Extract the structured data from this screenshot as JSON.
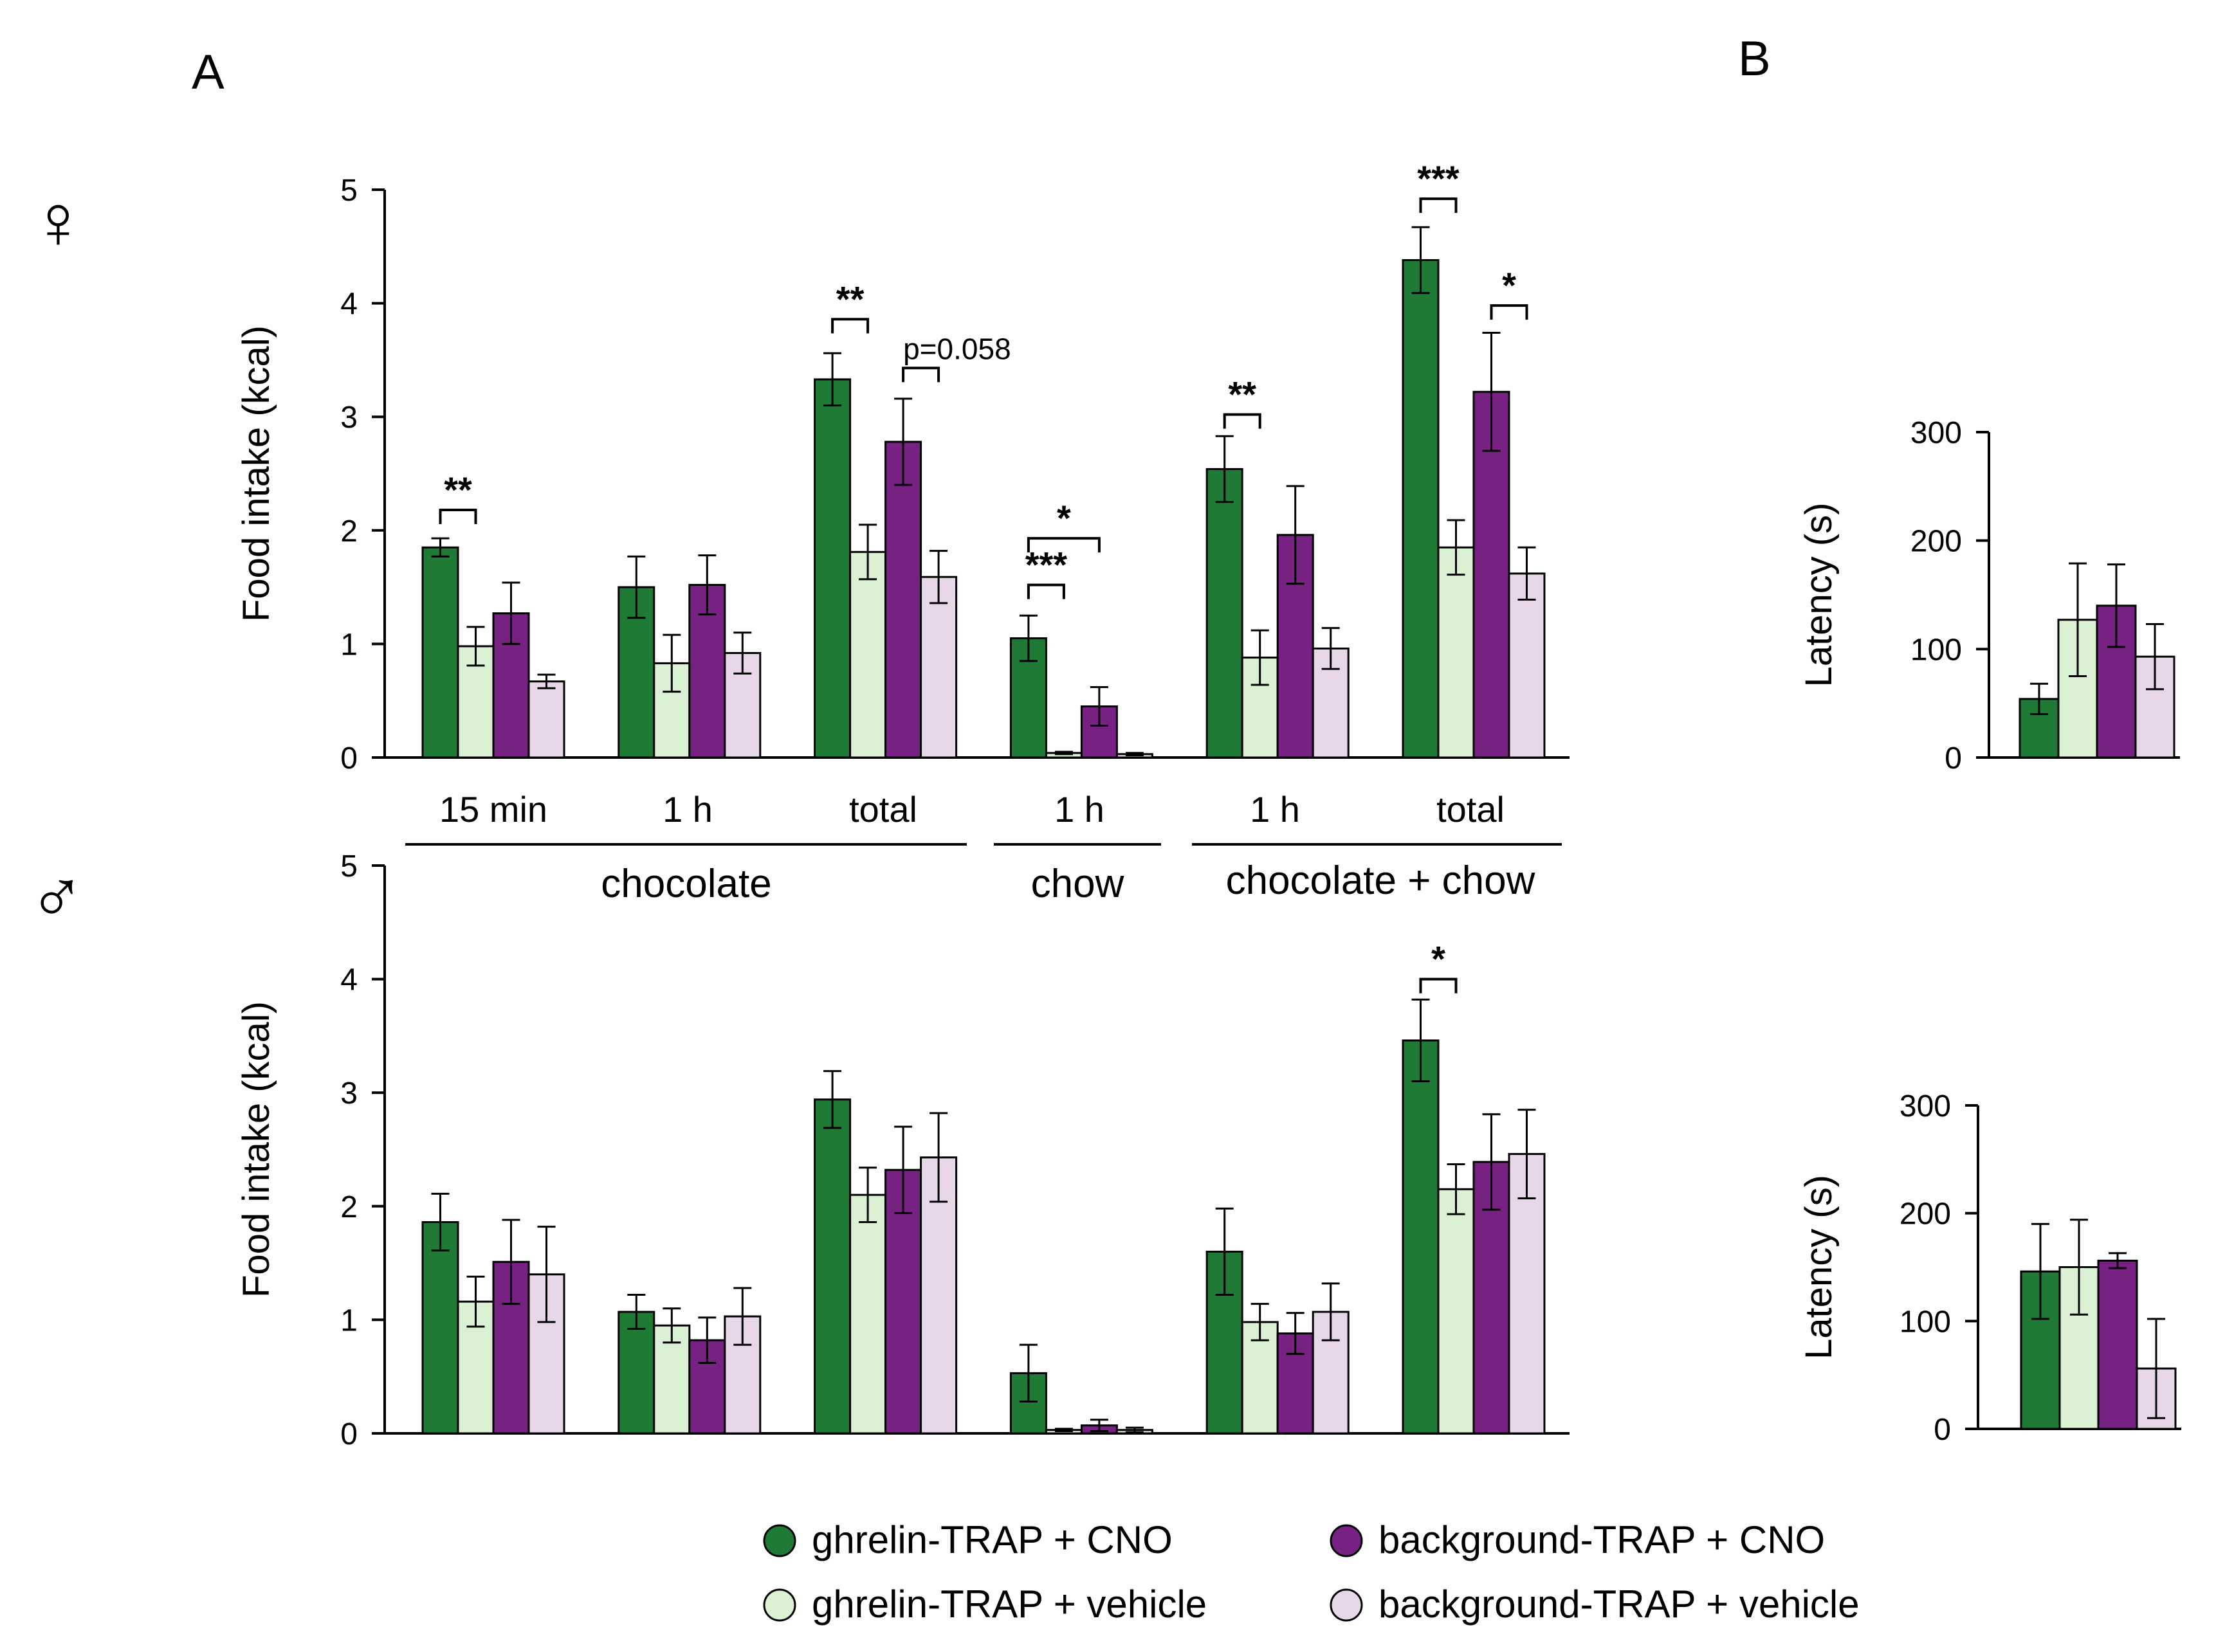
{
  "panel_labels": {
    "a": "A",
    "b": "B"
  },
  "sex_symbols": {
    "female": "♀",
    "male": "♂"
  },
  "colors": {
    "ghrelin_cno": "#1e7a34",
    "ghrelin_vehicle": "#dbf1d4",
    "background_cno": "#772283",
    "background_vehicle": "#e8d7e9"
  },
  "categories": [
    "15 min",
    "1 h",
    "total",
    "1 h",
    "1 h",
    "total"
  ],
  "category_groups": [
    "chocolate",
    "chow",
    "chocolate + chow"
  ],
  "legend": [
    {
      "label": "ghrelin-TRAP  + CNO",
      "color_key": "ghrelin_cno"
    },
    {
      "label": "ghrelin-TRAP  + vehicle",
      "color_key": "ghrelin_vehicle"
    },
    {
      "label": "background-TRAP  + CNO",
      "color_key": "background_cno"
    },
    {
      "label": "background-TRAP  + vehicle",
      "color_key": "background_vehicle"
    }
  ],
  "chart_data": [
    {
      "id": "A-female",
      "type": "bar",
      "title": "",
      "xlabel": "",
      "ylabel": "Food intake (kcal)",
      "ylim": [
        0,
        5
      ],
      "yticks": [
        0,
        1,
        2,
        3,
        4,
        5
      ],
      "categories": [
        "15 min",
        "1 h",
        "total",
        "1 h",
        "1 h",
        "total"
      ],
      "series": [
        {
          "name": "ghrelin-TRAP + CNO",
          "values": [
            1.85,
            1.5,
            3.33,
            1.05,
            2.54,
            4.38
          ],
          "errors": [
            0.08,
            0.27,
            0.23,
            0.2,
            0.29,
            0.29
          ]
        },
        {
          "name": "ghrelin-TRAP + vehicle",
          "values": [
            0.98,
            0.83,
            1.81,
            0.04,
            0.88,
            1.85
          ],
          "errors": [
            0.17,
            0.25,
            0.24,
            0.01,
            0.24,
            0.24
          ]
        },
        {
          "name": "background-TRAP + CNO",
          "values": [
            1.27,
            1.52,
            2.78,
            0.45,
            1.96,
            3.22
          ],
          "errors": [
            0.27,
            0.26,
            0.38,
            0.17,
            0.43,
            0.52
          ]
        },
        {
          "name": "background-TRAP + vehicle",
          "values": [
            0.67,
            0.92,
            1.59,
            0.03,
            0.96,
            1.62
          ],
          "errors": [
            0.06,
            0.18,
            0.23,
            0.01,
            0.18,
            0.23
          ]
        }
      ],
      "annotations": [
        {
          "text": "**",
          "category": 0,
          "from_series": 0,
          "to_series": 1,
          "level": 2.18
        },
        {
          "text": "**",
          "category": 2,
          "from_series": 0,
          "to_series": 1,
          "level": 3.86
        },
        {
          "text": "p=0.058",
          "category": 2,
          "from_series": 2,
          "to_series": 3,
          "level": 3.43
        },
        {
          "text": "***",
          "category": 3,
          "from_series": 0,
          "to_series": 1,
          "level": 1.52
        },
        {
          "text": "*",
          "category": 3,
          "from_series": 0,
          "to_series": 2,
          "level": 1.93
        },
        {
          "text": "**",
          "category": 4,
          "from_series": 0,
          "to_series": 1,
          "level": 3.02
        },
        {
          "text": "***",
          "category": 5,
          "from_series": 0,
          "to_series": 1,
          "level": 4.92
        },
        {
          "text": "*",
          "category": 5,
          "from_series": 2,
          "to_series": 3,
          "level": 3.98
        }
      ]
    },
    {
      "id": "A-male",
      "type": "bar",
      "title": "",
      "xlabel": "",
      "ylabel": "Food intake (kcal)",
      "ylim": [
        0,
        5
      ],
      "yticks": [
        0,
        1,
        2,
        3,
        4,
        5
      ],
      "categories": [
        "15 min",
        "1 h",
        "total",
        "1 h",
        "1 h",
        "total"
      ],
      "series": [
        {
          "name": "ghrelin-TRAP + CNO",
          "values": [
            1.86,
            1.07,
            2.94,
            0.53,
            1.6,
            3.46
          ],
          "errors": [
            0.25,
            0.15,
            0.25,
            0.25,
            0.38,
            0.36
          ]
        },
        {
          "name": "ghrelin-TRAP + vehicle",
          "values": [
            1.16,
            0.95,
            2.1,
            0.03,
            0.98,
            2.15
          ],
          "errors": [
            0.22,
            0.15,
            0.24,
            0.01,
            0.16,
            0.22
          ]
        },
        {
          "name": "background-TRAP + CNO",
          "values": [
            1.51,
            0.82,
            2.32,
            0.07,
            0.88,
            2.39
          ],
          "errors": [
            0.37,
            0.2,
            0.38,
            0.05,
            0.18,
            0.42
          ]
        },
        {
          "name": "background-TRAP + vehicle",
          "values": [
            1.4,
            1.03,
            2.43,
            0.03,
            1.07,
            2.46
          ],
          "errors": [
            0.42,
            0.25,
            0.39,
            0.02,
            0.25,
            0.39
          ]
        }
      ],
      "annotations": [
        {
          "text": "*",
          "category": 5,
          "from_series": 0,
          "to_series": 1,
          "level": 4.0
        }
      ]
    },
    {
      "id": "B-female",
      "type": "bar",
      "title": "",
      "xlabel": "",
      "ylabel": "Latency (s)",
      "ylim": [
        0,
        300
      ],
      "yticks": [
        0,
        100,
        200,
        300
      ],
      "categories": [
        ""
      ],
      "series": [
        {
          "name": "ghrelin-TRAP + CNO",
          "values": [
            54
          ],
          "errors": [
            14
          ]
        },
        {
          "name": "ghrelin-TRAP + vehicle",
          "values": [
            127
          ],
          "errors": [
            52
          ]
        },
        {
          "name": "background-TRAP + CNO",
          "values": [
            140
          ],
          "errors": [
            38
          ]
        },
        {
          "name": "background-TRAP + vehicle",
          "values": [
            93
          ],
          "errors": [
            30
          ]
        }
      ],
      "annotations": []
    },
    {
      "id": "B-male",
      "type": "bar",
      "title": "",
      "xlabel": "",
      "ylabel": "Latency (s)",
      "ylim": [
        0,
        300
      ],
      "yticks": [
        0,
        100,
        200,
        300
      ],
      "categories": [
        ""
      ],
      "series": [
        {
          "name": "ghrelin-TRAP + CNO",
          "values": [
            146
          ],
          "errors": [
            44
          ]
        },
        {
          "name": "ghrelin-TRAP + vehicle",
          "values": [
            150
          ],
          "errors": [
            44
          ]
        },
        {
          "name": "background-TRAP + CNO",
          "values": [
            156
          ],
          "errors": [
            7
          ]
        },
        {
          "name": "background-TRAP + vehicle",
          "values": [
            56
          ],
          "errors": [
            46
          ]
        }
      ],
      "annotations": []
    }
  ]
}
